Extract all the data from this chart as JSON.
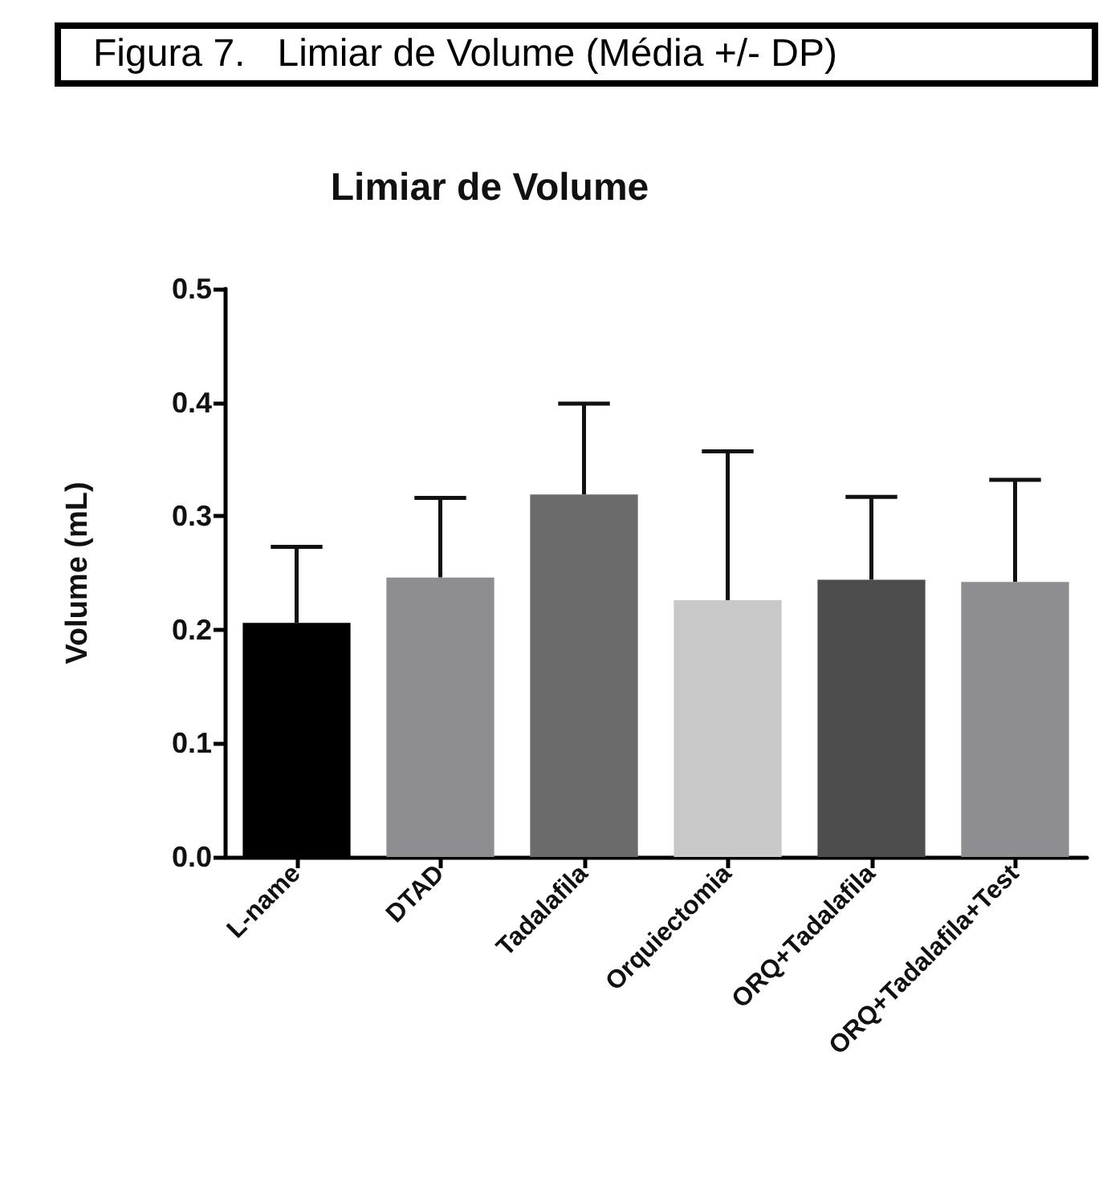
{
  "chart_data": {
    "type": "bar",
    "title": "Limiar de Volume",
    "ylabel": "Volume (mL)",
    "annotations": [
      "Figura 7.   Limiar de Volume (Média +/- DP)"
    ],
    "categories": [
      "L-name",
      "DTAD",
      "Tadalafila",
      "Orquiectomia",
      "ORQ+Tadalafila",
      "ORQ+Tadalafila+Test"
    ],
    "values": [
      0.206,
      0.246,
      0.319,
      0.226,
      0.244,
      0.242
    ],
    "colors": [
      "#000000",
      "#8e8d92",
      "#6b6b6b",
      "#c8c8c8",
      "#4d4d4d",
      "#8e8d92"
    ],
    "errors": [
      [
        0.206,
        0.273
      ],
      [
        0.246,
        0.316
      ],
      [
        0.319,
        0.399
      ],
      [
        0.226,
        0.357
      ],
      [
        0.244,
        0.317
      ],
      [
        0.242,
        0.332
      ]
    ],
    "ylim": [
      0,
      0.5
    ],
    "yticks": [
      {
        "value": 0,
        "label": "0.0"
      },
      0.1,
      0.2,
      0.3,
      0.4,
      0.5
    ],
    "grid": false
  }
}
